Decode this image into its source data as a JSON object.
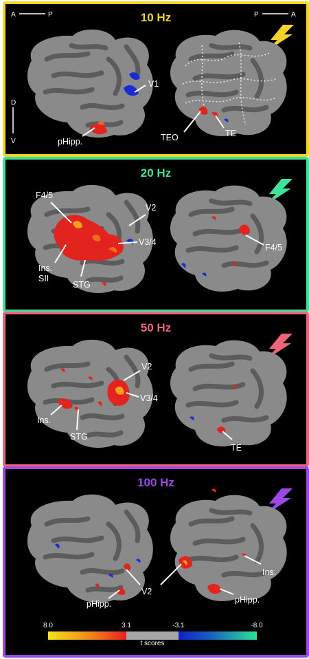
{
  "panels": [
    {
      "id": "10hz",
      "title": "10 Hz",
      "color": "#f5d327",
      "labels": {
        "v1": "V1",
        "phipp": "pHipp.",
        "teo": "TEO",
        "te": "TE"
      }
    },
    {
      "id": "20hz",
      "title": "20 Hz",
      "color": "#3ee29b",
      "labels": {
        "f45l": "F4/5",
        "v2": "V2",
        "v34": "V3/4",
        "ins": "Ins.",
        "sii": "SII",
        "stg": "STG",
        "f45r": "F4/5"
      }
    },
    {
      "id": "50hz",
      "title": "50 Hz",
      "color": "#f06479",
      "labels": {
        "v2": "V2",
        "v34": "V3/4",
        "ins": "Ins.",
        "stg": "STG",
        "te": "TE"
      }
    },
    {
      "id": "100hz",
      "title": "100 Hz",
      "color": "#9d48e6",
      "labels": {
        "phipp_l": "pHipp.",
        "v2": "V2",
        "ins": "Ins.",
        "phipp_r": "pHipp."
      }
    }
  ],
  "orientation": {
    "left": {
      "a": "A",
      "p": "P"
    },
    "right": {
      "p": "P",
      "a": "A"
    },
    "dv": {
      "d": "D",
      "v": "V"
    }
  },
  "colorbar": {
    "ticks": [
      "8.0",
      "3.1",
      "-3.1",
      "-8.0"
    ],
    "title": "t scores",
    "colors": {
      "yellow": "#f2e51c",
      "red": "#e8201c",
      "gray": "#a6a6a6",
      "blue": "#1020c8",
      "green": "#2ee296"
    }
  }
}
